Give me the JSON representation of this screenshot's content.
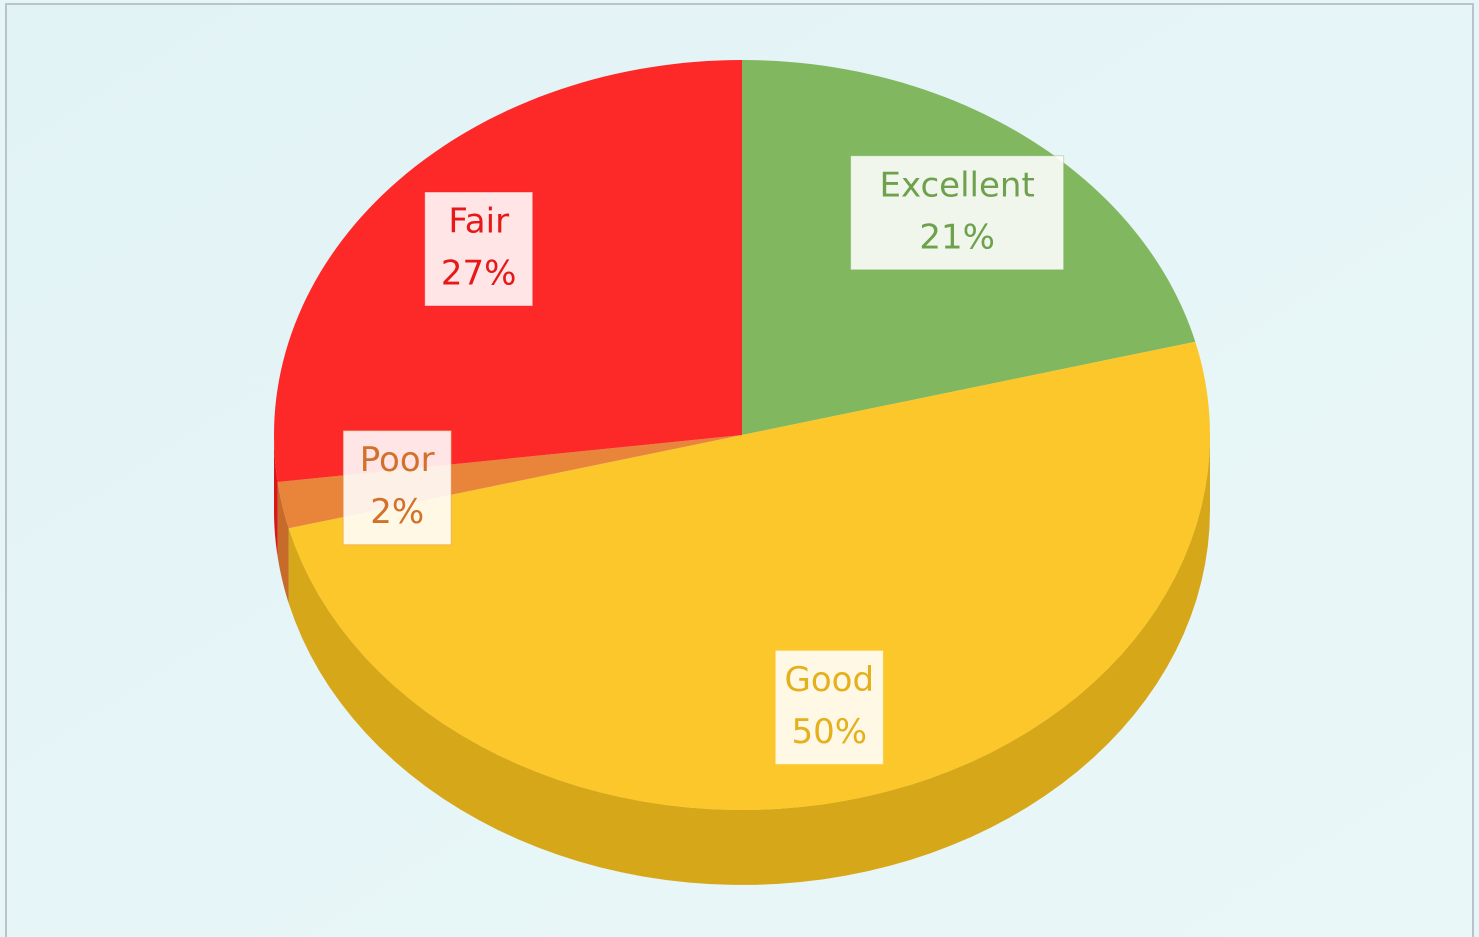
{
  "chart_data": {
    "type": "pie",
    "categories": [
      "Excellent",
      "Good",
      "Poor",
      "Fair"
    ],
    "values": [
      21,
      50,
      2,
      27
    ],
    "value_labels": [
      "21%",
      "50%",
      "2%",
      "27%"
    ],
    "colors": [
      "#7ab356",
      "#fdc41f",
      "#e97e30",
      "#fe1c1c"
    ]
  }
}
